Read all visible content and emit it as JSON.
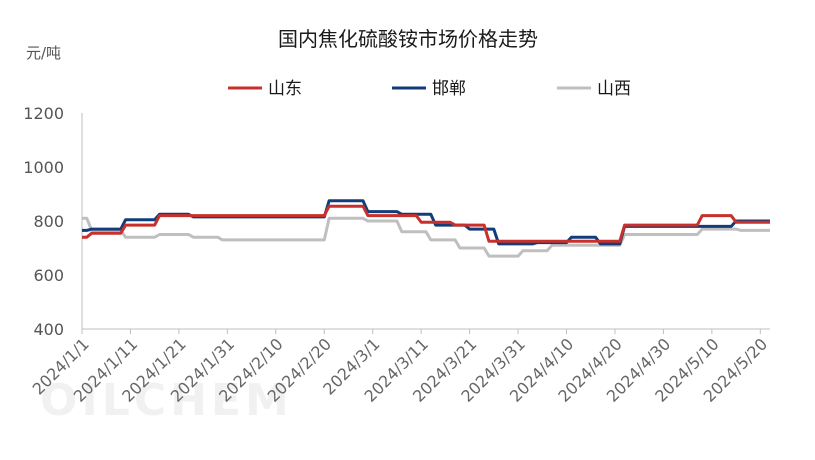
{
  "chart_data": {
    "type": "line",
    "title": "国内焦化硫酸铵市场价格走势",
    "unit_label": "元/吨",
    "watermark": "OILCHEM",
    "ylim": [
      400,
      1200
    ],
    "yticks": [
      400,
      600,
      800,
      1000,
      1200
    ],
    "xlim": [
      "2024/1/1",
      "2024/5/22"
    ],
    "xticks": [
      "2024/1/1",
      "2024/1/11",
      "2024/1/21",
      "2024/1/31",
      "2024/2/10",
      "2024/2/20",
      "2024/3/1",
      "2024/3/11",
      "2024/3/21",
      "2024/3/31",
      "2024/4/10",
      "2024/4/20",
      "2024/4/30",
      "2024/5/10",
      "2024/5/20"
    ],
    "grid": false,
    "legend_position": "top",
    "series": [
      {
        "name": "山东",
        "color": "#c8312b",
        "points": [
          [
            "2024/1/1",
            740
          ],
          [
            "2024/1/2",
            740
          ],
          [
            "2024/1/3",
            755
          ],
          [
            "2024/1/9",
            755
          ],
          [
            "2024/1/10",
            785
          ],
          [
            "2024/1/16",
            785
          ],
          [
            "2024/1/17",
            820
          ],
          [
            "2024/2/20",
            820
          ],
          [
            "2024/2/21",
            855
          ],
          [
            "2024/2/28",
            855
          ],
          [
            "2024/2/29",
            820
          ],
          [
            "2024/3/10",
            820
          ],
          [
            "2024/3/11",
            795
          ],
          [
            "2024/3/17",
            795
          ],
          [
            "2024/3/18",
            785
          ],
          [
            "2024/3/24",
            785
          ],
          [
            "2024/3/25",
            725
          ],
          [
            "2024/4/21",
            725
          ],
          [
            "2024/4/22",
            785
          ],
          [
            "2024/5/7",
            785
          ],
          [
            "2024/5/8",
            820
          ],
          [
            "2024/5/14",
            820
          ],
          [
            "2024/5/15",
            795
          ],
          [
            "2024/5/22",
            795
          ]
        ]
      },
      {
        "name": "邯郸",
        "color": "#123d7a",
        "points": [
          [
            "2024/1/1",
            765
          ],
          [
            "2024/1/2",
            765
          ],
          [
            "2024/1/3",
            770
          ],
          [
            "2024/1/9",
            770
          ],
          [
            "2024/1/10",
            805
          ],
          [
            "2024/1/16",
            805
          ],
          [
            "2024/1/17",
            825
          ],
          [
            "2024/1/23",
            825
          ],
          [
            "2024/1/24",
            815
          ],
          [
            "2024/2/20",
            815
          ],
          [
            "2024/2/21",
            875
          ],
          [
            "2024/2/28",
            875
          ],
          [
            "2024/2/29",
            835
          ],
          [
            "2024/3/6",
            835
          ],
          [
            "2024/3/7",
            825
          ],
          [
            "2024/3/13",
            825
          ],
          [
            "2024/3/14",
            785
          ],
          [
            "2024/3/20",
            785
          ],
          [
            "2024/3/21",
            770
          ],
          [
            "2024/3/26",
            770
          ],
          [
            "2024/3/27",
            715
          ],
          [
            "2024/4/3",
            715
          ],
          [
            "2024/4/4",
            720
          ],
          [
            "2024/4/10",
            720
          ],
          [
            "2024/4/11",
            740
          ],
          [
            "2024/4/16",
            740
          ],
          [
            "2024/4/17",
            715
          ],
          [
            "2024/4/21",
            715
          ],
          [
            "2024/4/22",
            780
          ],
          [
            "2024/5/14",
            780
          ],
          [
            "2024/5/15",
            800
          ],
          [
            "2024/5/22",
            800
          ]
        ]
      },
      {
        "name": "山西",
        "color": "#bfbfbf",
        "points": [
          [
            "2024/1/1",
            810
          ],
          [
            "2024/1/2",
            810
          ],
          [
            "2024/1/3",
            765
          ],
          [
            "2024/1/9",
            765
          ],
          [
            "2024/1/10",
            740
          ],
          [
            "2024/1/16",
            740
          ],
          [
            "2024/1/17",
            750
          ],
          [
            "2024/1/23",
            750
          ],
          [
            "2024/1/24",
            740
          ],
          [
            "2024/1/29",
            740
          ],
          [
            "2024/1/30",
            730
          ],
          [
            "2024/2/20",
            730
          ],
          [
            "2024/2/21",
            810
          ],
          [
            "2024/2/28",
            810
          ],
          [
            "2024/2/29",
            800
          ],
          [
            "2024/3/6",
            800
          ],
          [
            "2024/3/7",
            760
          ],
          [
            "2024/3/12",
            760
          ],
          [
            "2024/3/13",
            730
          ],
          [
            "2024/3/18",
            730
          ],
          [
            "2024/3/19",
            700
          ],
          [
            "2024/3/24",
            700
          ],
          [
            "2024/3/25",
            670
          ],
          [
            "2024/3/31",
            670
          ],
          [
            "2024/4/1",
            690
          ],
          [
            "2024/4/6",
            690
          ],
          [
            "2024/4/7",
            710
          ],
          [
            "2024/4/21",
            710
          ],
          [
            "2024/4/22",
            750
          ],
          [
            "2024/5/7",
            750
          ],
          [
            "2024/5/8",
            770
          ],
          [
            "2024/5/15",
            770
          ],
          [
            "2024/5/16",
            765
          ],
          [
            "2024/5/22",
            765
          ]
        ]
      }
    ]
  }
}
